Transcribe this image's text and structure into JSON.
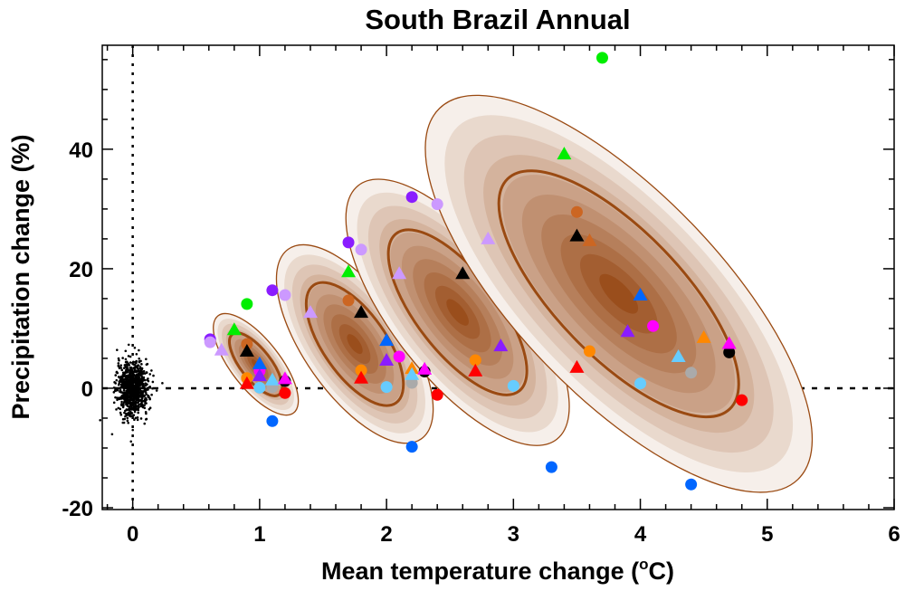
{
  "chart_data": {
    "type": "scatter",
    "title": "South Brazil Annual",
    "xlabel": {
      "prefix": "Mean temperature change (",
      "sup": "o",
      "suffix": "C)"
    },
    "ylabel": "Precipitation change (%)",
    "xlim": [
      -0.24,
      6
    ],
    "ylim": [
      -20.3,
      57.4
    ],
    "xticks": [
      0,
      1,
      2,
      3,
      4,
      5,
      6
    ],
    "yticks": [
      -20,
      0,
      20,
      40
    ],
    "xminor": 0.2,
    "yminor": 5,
    "reference_lines": {
      "x": 0,
      "y": 0
    },
    "colors": {
      "green": "#00ee00",
      "purple": "#8a1cff",
      "lilac": "#cc99ff",
      "chocolate": "#cc6622",
      "black": "#000000",
      "blue": "#0066ff",
      "magenta": "#ff00ff",
      "orange": "#ff8800",
      "red": "#ff0000",
      "lightblue": "#66ccff",
      "gray": "#aaaaaa",
      "contour": "#9a4a12",
      "density_light": "#f6efea",
      "density_dark": "#9a4e1c"
    },
    "density_ellipses": [
      {
        "center": [
          0.97,
          4.0
        ]
      },
      {
        "center": [
          1.75,
          7.4
        ]
      },
      {
        "center": [
          2.56,
          12.7
        ]
      },
      {
        "center": [
          3.83,
          15.8
        ]
      }
    ],
    "noise_cloud": {
      "center": [
        0,
        0
      ],
      "sd_x": 0.06,
      "sd_y": 2.2,
      "n": 900
    },
    "points": [
      {
        "x": 0.61,
        "y": 8.2,
        "c": "purple",
        "m": "circle"
      },
      {
        "x": 0.61,
        "y": 7.7,
        "c": "lilac",
        "m": "circle"
      },
      {
        "x": 0.7,
        "y": 6.4,
        "c": "lilac",
        "m": "triangle"
      },
      {
        "x": 0.8,
        "y": 9.8,
        "c": "green",
        "m": "triangle"
      },
      {
        "x": 0.9,
        "y": 14.1,
        "c": "green",
        "m": "circle"
      },
      {
        "x": 1.1,
        "y": 16.4,
        "c": "purple",
        "m": "circle"
      },
      {
        "x": 1.2,
        "y": 15.6,
        "c": "lilac",
        "m": "circle"
      },
      {
        "x": 0.9,
        "y": 7.4,
        "c": "chocolate",
        "m": "circle"
      },
      {
        "x": 0.9,
        "y": 6.2,
        "c": "black",
        "m": "triangle"
      },
      {
        "x": 1.0,
        "y": 2.9,
        "c": "magenta",
        "m": "circle"
      },
      {
        "x": 1.0,
        "y": 4.1,
        "c": "blue",
        "m": "triangle"
      },
      {
        "x": 1.0,
        "y": 2.1,
        "c": "purple",
        "m": "triangle"
      },
      {
        "x": 0.9,
        "y": 1.7,
        "c": "orange",
        "m": "circle"
      },
      {
        "x": 0.9,
        "y": 0.8,
        "c": "red",
        "m": "triangle"
      },
      {
        "x": 1.1,
        "y": 0.2,
        "c": "gray",
        "m": "circle"
      },
      {
        "x": 1.1,
        "y": 1.4,
        "c": "lightblue",
        "m": "triangle"
      },
      {
        "x": 1.0,
        "y": 0.1,
        "c": "lightblue",
        "m": "circle"
      },
      {
        "x": 1.2,
        "y": 1.2,
        "c": "black",
        "m": "circle"
      },
      {
        "x": 1.2,
        "y": 1.6,
        "c": "magenta",
        "m": "triangle"
      },
      {
        "x": 1.2,
        "y": -0.8,
        "c": "red",
        "m": "circle"
      },
      {
        "x": 1.1,
        "y": -5.5,
        "c": "blue",
        "m": "circle"
      },
      {
        "x": 1.7,
        "y": 19.5,
        "c": "green",
        "m": "triangle"
      },
      {
        "x": 1.7,
        "y": 24.4,
        "c": "purple",
        "m": "circle"
      },
      {
        "x": 1.8,
        "y": 23.2,
        "c": "lilac",
        "m": "circle"
      },
      {
        "x": 1.4,
        "y": 12.7,
        "c": "lilac",
        "m": "triangle"
      },
      {
        "x": 1.7,
        "y": 14.7,
        "c": "chocolate",
        "m": "circle"
      },
      {
        "x": 1.8,
        "y": 12.7,
        "c": "black",
        "m": "triangle"
      },
      {
        "x": 2.0,
        "y": 8.0,
        "c": "blue",
        "m": "triangle"
      },
      {
        "x": 2.1,
        "y": 5.3,
        "c": "magenta",
        "m": "circle"
      },
      {
        "x": 2.0,
        "y": 4.7,
        "c": "purple",
        "m": "triangle"
      },
      {
        "x": 1.8,
        "y": 3.0,
        "c": "orange",
        "m": "circle"
      },
      {
        "x": 1.8,
        "y": 1.7,
        "c": "red",
        "m": "triangle"
      },
      {
        "x": 2.0,
        "y": 0.2,
        "c": "lightblue",
        "m": "circle"
      },
      {
        "x": 2.2,
        "y": 3.3,
        "c": "orange",
        "m": "triangle"
      },
      {
        "x": 2.2,
        "y": 0.9,
        "c": "gray",
        "m": "circle"
      },
      {
        "x": 2.2,
        "y": 2.3,
        "c": "lightblue",
        "m": "triangle"
      },
      {
        "x": 2.3,
        "y": 2.8,
        "c": "black",
        "m": "circle"
      },
      {
        "x": 2.3,
        "y": 3.2,
        "c": "magenta",
        "m": "triangle"
      },
      {
        "x": 2.4,
        "y": -1.1,
        "c": "red",
        "m": "circle"
      },
      {
        "x": 2.2,
        "y": -9.8,
        "c": "blue",
        "m": "circle"
      },
      {
        "x": 2.2,
        "y": 32.0,
        "c": "purple",
        "m": "circle"
      },
      {
        "x": 2.4,
        "y": 30.8,
        "c": "lilac",
        "m": "circle"
      },
      {
        "x": 2.1,
        "y": 19.2,
        "c": "lilac",
        "m": "triangle"
      },
      {
        "x": 2.8,
        "y": 25.0,
        "c": "lilac",
        "m": "triangle"
      },
      {
        "x": 2.6,
        "y": 19.2,
        "c": "black",
        "m": "triangle"
      },
      {
        "x": 2.9,
        "y": 7.1,
        "c": "purple",
        "m": "triangle"
      },
      {
        "x": 2.7,
        "y": 4.7,
        "c": "orange",
        "m": "circle"
      },
      {
        "x": 2.7,
        "y": 2.9,
        "c": "red",
        "m": "triangle"
      },
      {
        "x": 3.0,
        "y": 0.4,
        "c": "lightblue",
        "m": "circle"
      },
      {
        "x": 3.3,
        "y": -13.2,
        "c": "blue",
        "m": "circle"
      },
      {
        "x": 3.4,
        "y": 39.2,
        "c": "green",
        "m": "triangle"
      },
      {
        "x": 3.7,
        "y": 55.3,
        "c": "green",
        "m": "circle"
      },
      {
        "x": 3.5,
        "y": 29.5,
        "c": "chocolate",
        "m": "circle"
      },
      {
        "x": 3.5,
        "y": 25.5,
        "c": "black",
        "m": "triangle"
      },
      {
        "x": 3.6,
        "y": 24.7,
        "c": "chocolate",
        "m": "triangle"
      },
      {
        "x": 4.0,
        "y": 15.6,
        "c": "blue",
        "m": "triangle"
      },
      {
        "x": 3.9,
        "y": 9.5,
        "c": "purple",
        "m": "triangle"
      },
      {
        "x": 4.1,
        "y": 10.4,
        "c": "magenta",
        "m": "circle"
      },
      {
        "x": 3.6,
        "y": 6.2,
        "c": "orange",
        "m": "circle"
      },
      {
        "x": 3.5,
        "y": 3.5,
        "c": "red",
        "m": "triangle"
      },
      {
        "x": 4.0,
        "y": 0.8,
        "c": "lightblue",
        "m": "circle"
      },
      {
        "x": 4.5,
        "y": 8.5,
        "c": "orange",
        "m": "triangle"
      },
      {
        "x": 4.3,
        "y": 5.3,
        "c": "lightblue",
        "m": "triangle"
      },
      {
        "x": 4.4,
        "y": 2.6,
        "c": "gray",
        "m": "circle"
      },
      {
        "x": 4.7,
        "y": 6.0,
        "c": "black",
        "m": "circle"
      },
      {
        "x": 4.7,
        "y": 7.5,
        "c": "magenta",
        "m": "triangle"
      },
      {
        "x": 4.8,
        "y": -2.0,
        "c": "red",
        "m": "circle"
      },
      {
        "x": 4.4,
        "y": -16.1,
        "c": "blue",
        "m": "circle"
      }
    ]
  }
}
